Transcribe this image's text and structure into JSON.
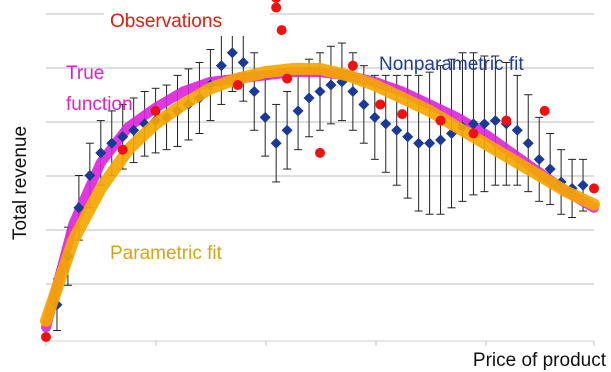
{
  "chart_data": {
    "type": "line",
    "xlabel": "Price of product",
    "ylabel": "Total revenue",
    "xlim": [
      0,
      100
    ],
    "ylim": [
      0,
      100
    ],
    "grid": {
      "horizontal": true,
      "vertical": false
    },
    "show_tick_labels": false,
    "annotations": [
      {
        "id": "observations",
        "lines": [
          "Observations"
        ],
        "color": "#e8180e"
      },
      {
        "id": "true-function",
        "lines": [
          "True",
          "function"
        ],
        "color": "#dd22cc"
      },
      {
        "id": "nonparametric-fit",
        "lines": [
          "Nonparametric fit"
        ],
        "color": "#1f3d99"
      },
      {
        "id": "parametric-fit",
        "lines": [
          "Parametric fit"
        ],
        "color": "#d4a514"
      }
    ],
    "series": [
      {
        "key": "true-function",
        "kind": "line",
        "color": "#dd22dd",
        "x": [
          0,
          5,
          10,
          15,
          20,
          25,
          30,
          35,
          40,
          45,
          50,
          55,
          60,
          65,
          70,
          75,
          80,
          85,
          90,
          95,
          100
        ],
        "y": [
          3,
          35,
          54,
          65,
          71,
          76,
          79,
          80,
          81,
          82,
          82,
          81,
          79,
          76,
          72,
          68,
          63,
          57,
          51,
          45,
          40
        ]
      },
      {
        "key": "parametric-fit",
        "kind": "line",
        "color": "#f4a700",
        "x": [
          0,
          5,
          10,
          15,
          20,
          25,
          30,
          35,
          40,
          45,
          50,
          55,
          60,
          65,
          70,
          75,
          80,
          85,
          90,
          95,
          100
        ],
        "y": [
          5,
          30,
          46,
          58,
          66,
          72,
          77,
          80,
          82,
          83,
          83,
          81,
          78,
          74,
          70,
          65,
          60,
          55,
          50,
          45,
          41
        ]
      },
      {
        "key": "nonparametric-fit",
        "kind": "markers-errorbars",
        "color": "#1a3a96",
        "x": [
          2,
          4,
          6,
          8,
          10,
          12,
          14,
          16,
          18,
          20,
          22,
          24,
          26,
          28,
          30,
          32,
          34,
          36,
          38,
          40,
          42,
          44,
          46,
          48,
          50,
          52,
          54,
          56,
          58,
          60,
          62,
          64,
          66,
          68,
          70,
          72,
          74,
          76,
          78,
          80,
          82,
          84,
          86,
          88,
          90,
          92,
          94,
          96,
          98
        ],
        "y": [
          10,
          25,
          40,
          50,
          57,
          60,
          62,
          64,
          66,
          67,
          68,
          70,
          72,
          74,
          78,
          84,
          88,
          85,
          76,
          68,
          60,
          64,
          70,
          74,
          76,
          78,
          79,
          76,
          72,
          68,
          66,
          64,
          62,
          60,
          60,
          61,
          63,
          65,
          66,
          66,
          67,
          66,
          64,
          60,
          55,
          52,
          48,
          46,
          47
        ],
        "err": [
          8,
          9,
          10,
          10,
          10,
          10,
          10,
          10,
          10,
          10,
          10,
          11,
          11,
          11,
          11,
          12,
          12,
          12,
          12,
          12,
          12,
          12,
          12,
          12,
          12,
          12,
          12,
          12,
          12,
          13,
          15,
          17,
          19,
          21,
          22,
          23,
          23,
          23,
          22,
          21,
          20,
          19,
          17,
          15,
          13,
          11,
          10,
          9,
          8
        ]
      },
      {
        "key": "observations",
        "kind": "points",
        "color": "#ee1111",
        "x": [
          0,
          14,
          20,
          35,
          42,
          42,
          43,
          44,
          50,
          56,
          61,
          65,
          72,
          78,
          84,
          91,
          100
        ],
        "y": [
          0,
          58,
          70,
          78,
          105,
          102,
          95,
          80,
          57,
          84,
          72,
          69,
          67,
          63,
          67,
          70,
          46
        ]
      }
    ]
  }
}
